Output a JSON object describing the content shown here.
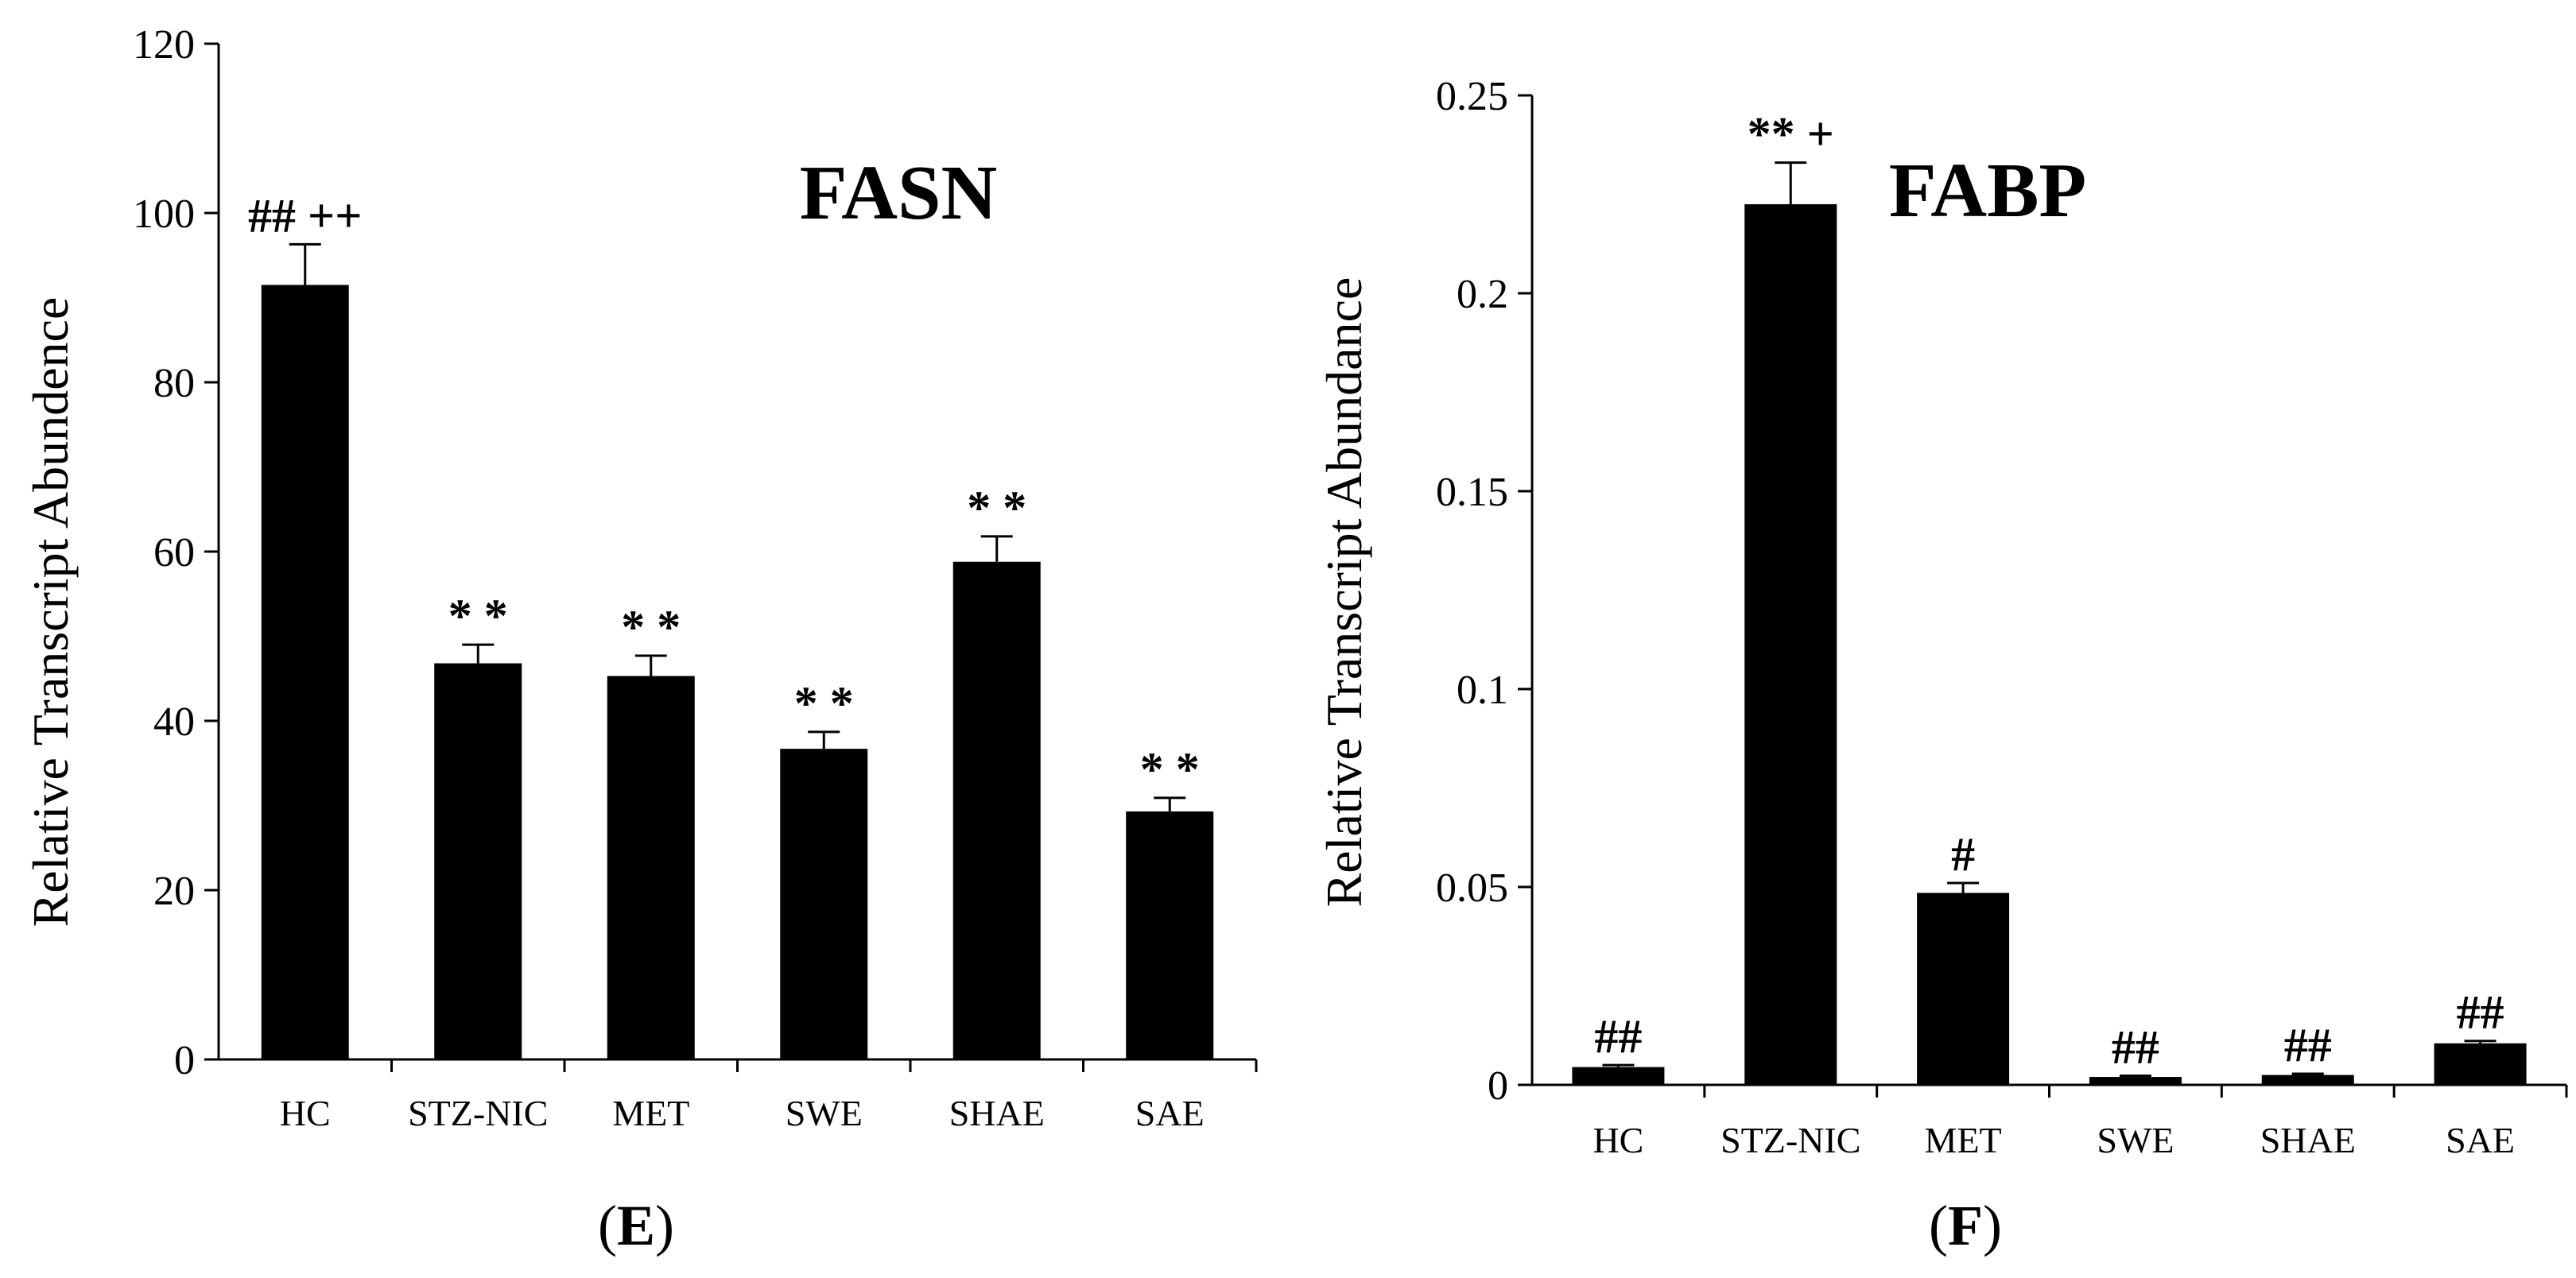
{
  "chart_data": [
    {
      "type": "bar",
      "title": "FASN",
      "panel_label": "E",
      "ylabel": "Relative Transcript Abundence",
      "xlabel": "",
      "ylim": [
        0,
        120
      ],
      "yticks": [
        0,
        20,
        40,
        60,
        80,
        100,
        120
      ],
      "ytick_labels": [
        "0",
        "20",
        "40",
        "60",
        "80",
        "100",
        "120"
      ],
      "categories": [
        "HC",
        "STZ-NIC",
        "MET",
        "SWE",
        "SHAE",
        "SAE"
      ],
      "values": [
        91.5,
        46.8,
        45.3,
        36.7,
        58.8,
        29.3
      ],
      "errors": [
        4.8,
        2.2,
        2.4,
        2.0,
        3.0,
        1.6
      ],
      "annotations": [
        "## ++",
        "* *",
        "* *",
        "* *",
        "* *",
        "* *"
      ],
      "bar_color": "#000000",
      "grid": false
    },
    {
      "type": "bar",
      "title": "FABP",
      "panel_label": "F",
      "ylabel": "Relative Transcript Abundance",
      "xlabel": "",
      "ylim": [
        0,
        0.25
      ],
      "yticks": [
        0,
        0.05,
        0.1,
        0.15,
        0.2,
        0.25
      ],
      "ytick_labels": [
        "0",
        "0.05",
        "0.1",
        "0.15",
        "0.2",
        "0.25"
      ],
      "categories": [
        "HC",
        "STZ-NIC",
        "MET",
        "SWE",
        "SHAE",
        "SAE"
      ],
      "values": [
        0.0045,
        0.2225,
        0.0485,
        0.002,
        0.0025,
        0.0105
      ],
      "errors": [
        0.0005,
        0.0105,
        0.0025,
        0.0003,
        0.0003,
        0.0006
      ],
      "annotations": [
        "##",
        "** +",
        "#",
        "##",
        "##",
        "##"
      ],
      "bar_color": "#000000",
      "grid": false
    }
  ]
}
